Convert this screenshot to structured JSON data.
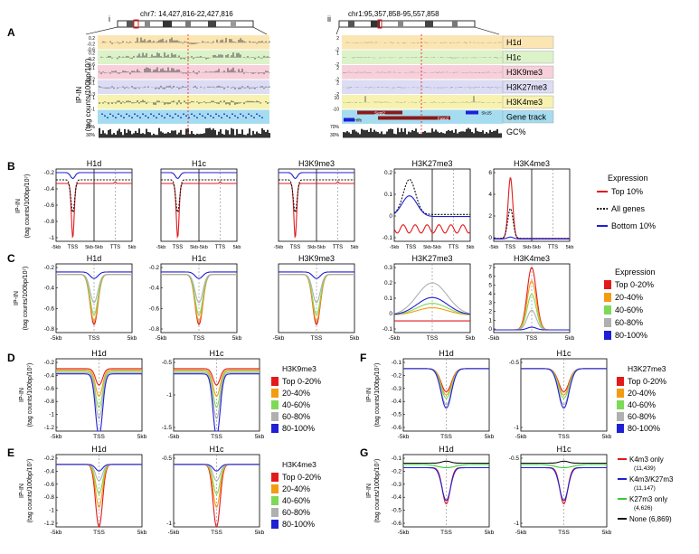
{
  "panel_letters": [
    "A",
    "B",
    "C",
    "D",
    "E",
    "F",
    "G"
  ],
  "panel_a": {
    "sub_i": "i",
    "sub_ii": "ii",
    "coord_i": "chr7: 14,427,816-22,427,816",
    "coord_ii": "chr1:95,357,858-95,557,858",
    "ylabel_1": "IP-IN",
    "ylabel_2": "(tag counts/100bp/10⁷)",
    "track_labels": [
      "H1d",
      "H1c",
      "H3K9me3",
      "H3K27me3",
      "H3K4me3",
      "Gene track",
      "GC%"
    ],
    "track_colors": [
      "#fbe6b3",
      "#dcf2c9",
      "#f7d0dc",
      "#dcdcf4",
      "#f7f2b0",
      "#a6dcef",
      "#ffffff"
    ],
    "ticks_i": [
      [
        "0.2",
        "-0.2",
        "-0.6"
      ],
      [
        "0.2",
        "-0.2",
        "-0.6"
      ],
      [
        "0.1",
        "-0.2"
      ],
      [
        "0.1",
        "-0.3"
      ],
      [
        "1",
        "-1"
      ]
    ],
    "ticks_ii": [
      [
        "2",
        "-2"
      ],
      [
        "1",
        "-2"
      ],
      [
        "2",
        "-2"
      ],
      [
        "2",
        "-2"
      ],
      [
        "10",
        "-10"
      ]
    ],
    "gc_ticks": [
      "70%",
      "30%"
    ],
    "genes": [
      "Sept2",
      "Fasp2",
      "Slc25",
      "Hlfb"
    ]
  },
  "panel_b": {
    "titles": [
      "H1d",
      "H1c",
      "H3K9me3",
      "H3K27me3",
      "H3K4me3"
    ],
    "xticks": [
      "-5kb",
      "TSS",
      "5kb",
      "-5kb",
      "TTS",
      "5kb"
    ],
    "ylabel": "IP-IN",
    "ylabel2": "(tag counts/100bp/10⁷)",
    "yticks_h1d": [
      "-0.2",
      "-0.4",
      "-0.6",
      "-0.8",
      "-1"
    ],
    "yticks_h3k27": [
      "0.2",
      "0.1",
      "0",
      "-0.1"
    ],
    "yticks_h3k4": [
      "6",
      "4",
      "2",
      "0"
    ],
    "legend_title": "Expression",
    "legend": [
      "Top 10%",
      "All genes",
      "Bottom 10%"
    ],
    "legend_colors": [
      "#e31a1c",
      "#111111",
      "#1f1fd6"
    ]
  },
  "panel_c": {
    "titles": [
      "H1d",
      "H1c",
      "H3K9me3",
      "H3K27me3",
      "H3K4me3"
    ],
    "xticks": [
      "-5kb",
      "TSS",
      "5kb"
    ],
    "yticks_h1": [
      "-0.2",
      "-0.4",
      "-0.6",
      "-0.8"
    ],
    "yticks_h3k27": [
      "0.3",
      "0.2",
      "0.1",
      "0",
      "-0.1"
    ],
    "yticks_h3k4": [
      "7",
      "6",
      "5",
      "4",
      "3",
      "2",
      "1",
      "0"
    ],
    "legend_title": "Expression",
    "legend": [
      "Top 0-20%",
      "20-40%",
      "40-60%",
      "60-80%",
      "80-100%"
    ]
  },
  "panel_d": {
    "titles": [
      "H1d",
      "H1c"
    ],
    "xticks": [
      "-5kb",
      "TSS",
      "5kb"
    ],
    "yticks": [
      "-0.2",
      "-0.4",
      "-0.6",
      "-0.8",
      "-1",
      "-1.2"
    ],
    "yticks_c": [
      "-0.5",
      "-1",
      "-1.5"
    ],
    "legend_title": "H3K9me3",
    "legend": [
      "Top 0-20%",
      "20-40%",
      "40-60%",
      "60-80%",
      "80-100%"
    ]
  },
  "panel_e": {
    "titles": [
      "H1d",
      "H1c"
    ],
    "xticks": [
      "-5kb",
      "TSS",
      "5kb"
    ],
    "yticks": [
      "-0.2",
      "-0.4",
      "-0.6",
      "-0.8",
      "-1",
      "-1.2"
    ],
    "yticks_c": [
      "-0.5",
      "-1"
    ],
    "legend_title": "H3K4me3",
    "legend": [
      "Top 0-20%",
      "20-40%",
      "40-60%",
      "60-80%",
      "80-100%"
    ]
  },
  "panel_f": {
    "titles": [
      "H1d",
      "H1c"
    ],
    "xticks": [
      "-5kb",
      "TSS",
      "5kb"
    ],
    "yticks": [
      "-0.1",
      "-0.2",
      "-0.3",
      "-0.4",
      "-0.5",
      "-0.6"
    ],
    "yticks_c": [
      "-0.5",
      "-1"
    ],
    "legend_title": "H3K27me3",
    "legend": [
      "Top 0-20%",
      "20-40%",
      "40-60%",
      "60-80%",
      "80-100%"
    ]
  },
  "panel_g": {
    "titles": [
      "H1d",
      "H1c"
    ],
    "xticks": [
      "-5kb",
      "TSS",
      "5kb"
    ],
    "yticks": [
      "-0.1",
      "-0.2",
      "-0.3",
      "-0.4",
      "-0.5",
      "-0.6"
    ],
    "yticks_c": [
      "-0.5",
      "-1"
    ],
    "legend": [
      "K4m3 only",
      "K4m3/K27m3",
      "K27m3 only",
      "None (6,869)"
    ],
    "legend_counts": [
      "(11,439)",
      "(11,147)",
      "(4,626)"
    ],
    "legend_colors": [
      "#e31a1c",
      "#1f1fd6",
      "#33cc33",
      "#111111"
    ]
  },
  "colors": {
    "red": "#e31a1c",
    "orange": "#f39c12",
    "green": "#7ed957",
    "grey": "#b0b0b0",
    "blue": "#1f1fd6",
    "black": "#111111",
    "dashed": "#888888"
  }
}
